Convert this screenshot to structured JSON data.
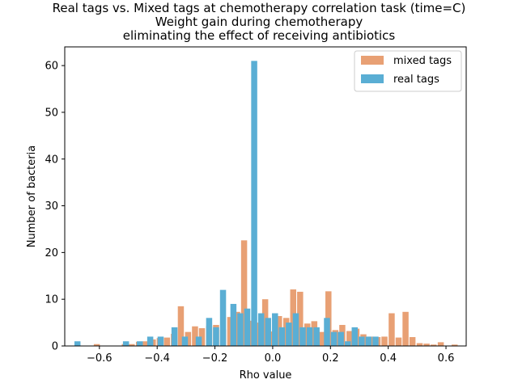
{
  "chart_data": {
    "type": "bar",
    "title_lines": [
      "Real tags vs. Mixed tags at chemotherapy correlation task (time=C)",
      "Weight gain during chemotherapy",
      "eliminating the effect of receiving antibiotics"
    ],
    "xlabel": "Rho value",
    "ylabel": "Number of bacteria",
    "xlim": [
      -0.72,
      0.67
    ],
    "ylim": [
      0,
      64
    ],
    "xticks": [
      -0.6,
      -0.4,
      -0.2,
      0.0,
      0.2,
      0.4,
      0.6
    ],
    "xtick_labels": [
      "−0.6",
      "−0.4",
      "−0.2",
      "0.0",
      "0.2",
      "0.4",
      "0.6"
    ],
    "yticks": [
      0,
      10,
      20,
      30,
      40,
      50,
      60
    ],
    "ytick_labels": [
      "0",
      "10",
      "20",
      "30",
      "40",
      "50",
      "60"
    ],
    "grid": false,
    "legend_position": "top-right",
    "series": [
      {
        "name": "mixed tags",
        "color": "#e8a074",
        "bins": [
          {
            "x": -0.609,
            "y": 0.4
          },
          {
            "x": -0.512,
            "y": 0.4
          },
          {
            "x": -0.488,
            "y": 0.4
          },
          {
            "x": -0.463,
            "y": 0.9
          },
          {
            "x": -0.439,
            "y": 1.0
          },
          {
            "x": -0.415,
            "y": 1.4
          },
          {
            "x": -0.391,
            "y": 1.7
          },
          {
            "x": -0.366,
            "y": 1.8
          },
          {
            "x": -0.342,
            "y": 2.6
          },
          {
            "x": -0.318,
            "y": 8.5
          },
          {
            "x": -0.293,
            "y": 3.0
          },
          {
            "x": -0.269,
            "y": 4.2
          },
          {
            "x": -0.245,
            "y": 3.8
          },
          {
            "x": -0.22,
            "y": 4.3
          },
          {
            "x": -0.196,
            "y": 4.5
          },
          {
            "x": -0.172,
            "y": 3.5
          },
          {
            "x": -0.147,
            "y": 6.2
          },
          {
            "x": -0.123,
            "y": 7.3
          },
          {
            "x": -0.099,
            "y": 22.6
          },
          {
            "x": -0.075,
            "y": 5.4
          },
          {
            "x": -0.05,
            "y": 5.0
          },
          {
            "x": -0.026,
            "y": 10.0
          },
          {
            "x": -0.002,
            "y": 3.1
          },
          {
            "x": 0.022,
            "y": 6.4
          },
          {
            "x": 0.047,
            "y": 6.0
          },
          {
            "x": 0.071,
            "y": 12.1
          },
          {
            "x": 0.095,
            "y": 11.6
          },
          {
            "x": 0.12,
            "y": 4.8
          },
          {
            "x": 0.144,
            "y": 5.3
          },
          {
            "x": 0.168,
            "y": 3.0
          },
          {
            "x": 0.193,
            "y": 11.7
          },
          {
            "x": 0.217,
            "y": 3.4
          },
          {
            "x": 0.241,
            "y": 4.5
          },
          {
            "x": 0.266,
            "y": 3.2
          },
          {
            "x": 0.29,
            "y": 3.7
          },
          {
            "x": 0.314,
            "y": 2.5
          },
          {
            "x": 0.339,
            "y": 2.0
          },
          {
            "x": 0.363,
            "y": 1.9
          },
          {
            "x": 0.387,
            "y": 2.0
          },
          {
            "x": 0.412,
            "y": 7.0
          },
          {
            "x": 0.436,
            "y": 1.8
          },
          {
            "x": 0.46,
            "y": 7.3
          },
          {
            "x": 0.484,
            "y": 1.9
          },
          {
            "x": 0.509,
            "y": 0.6
          },
          {
            "x": 0.533,
            "y": 0.5
          },
          {
            "x": 0.557,
            "y": 0.3
          },
          {
            "x": 0.582,
            "y": 0.8
          },
          {
            "x": 0.63,
            "y": 0.3
          }
        ]
      },
      {
        "name": "real tags",
        "color": "#5aaed4",
        "bins": [
          {
            "x": -0.676,
            "y": 1.0
          },
          {
            "x": -0.508,
            "y": 1.0
          },
          {
            "x": -0.46,
            "y": 1.0
          },
          {
            "x": -0.424,
            "y": 2.0
          },
          {
            "x": -0.388,
            "y": 2.0
          },
          {
            "x": -0.34,
            "y": 4.0
          },
          {
            "x": -0.304,
            "y": 2.0
          },
          {
            "x": -0.256,
            "y": 2.0
          },
          {
            "x": -0.22,
            "y": 6.0
          },
          {
            "x": -0.196,
            "y": 4.0
          },
          {
            "x": -0.172,
            "y": 12.0
          },
          {
            "x": -0.136,
            "y": 9.0
          },
          {
            "x": -0.112,
            "y": 7.0
          },
          {
            "x": -0.088,
            "y": 8.0
          },
          {
            "x": -0.064,
            "y": 61.0
          },
          {
            "x": -0.04,
            "y": 7.0
          },
          {
            "x": -0.016,
            "y": 6.0
          },
          {
            "x": 0.008,
            "y": 7.0
          },
          {
            "x": 0.032,
            "y": 4.0
          },
          {
            "x": 0.056,
            "y": 5.0
          },
          {
            "x": 0.08,
            "y": 7.0
          },
          {
            "x": 0.104,
            "y": 4.0
          },
          {
            "x": 0.128,
            "y": 4.0
          },
          {
            "x": 0.152,
            "y": 4.0
          },
          {
            "x": 0.188,
            "y": 6.0
          },
          {
            "x": 0.212,
            "y": 3.0
          },
          {
            "x": 0.236,
            "y": 3.0
          },
          {
            "x": 0.26,
            "y": 1.0
          },
          {
            "x": 0.284,
            "y": 4.0
          },
          {
            "x": 0.308,
            "y": 2.0
          },
          {
            "x": 0.332,
            "y": 2.0
          },
          {
            "x": 0.356,
            "y": 2.0
          }
        ]
      }
    ]
  }
}
